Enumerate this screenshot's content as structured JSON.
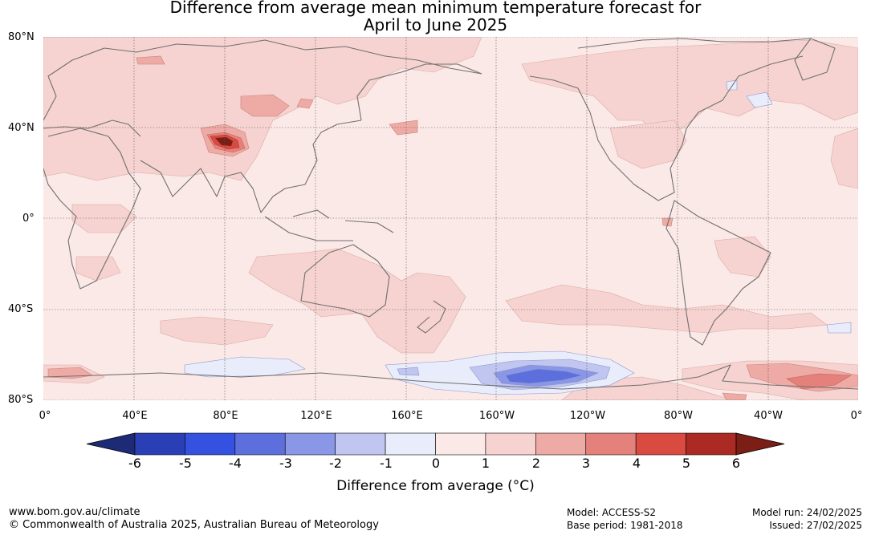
{
  "title_line1": "Difference from average mean minimum temperature forecast for",
  "title_line2": "April to June 2025",
  "map": {
    "lat_labels": [
      "80°N",
      "40°N",
      "0°",
      "40°S",
      "80°S"
    ],
    "lon_labels": [
      "0°",
      "40°E",
      "80°E",
      "120°E",
      "160°E",
      "160°W",
      "120°W",
      "80°W",
      "40°W",
      "0°"
    ],
    "colors": {
      "level_0_1": "#fbe9e7",
      "level_1_2": "#f6d3d0",
      "level_2_3": "#eeaaa5",
      "level_3_4": "#e5817b",
      "level_4_5": "#d94a40",
      "level_5_6": "#ab2a23",
      "level_gt6": "#7a1e16",
      "level_m1_0": "#e9ecfb",
      "level_m2_m1": "#c0c6f0",
      "level_m3_m2": "#8a96e6",
      "level_m4_m3": "#5c6fdc",
      "coast": "#707070"
    }
  },
  "colorbar": {
    "ticks": [
      "-6",
      "-5",
      "-4",
      "-3",
      "-2",
      "-1",
      "0",
      "1",
      "2",
      "3",
      "4",
      "5",
      "6"
    ],
    "colors": [
      "#1d2b77",
      "#2a3fb5",
      "#3451e0",
      "#5c6fdc",
      "#8a96e6",
      "#c0c6f0",
      "#e9ecfb",
      "#fbe9e7",
      "#f6d3d0",
      "#eeaaa5",
      "#e5817b",
      "#d94a40",
      "#ab2a23",
      "#7a1e16"
    ],
    "label": "Difference from average (°C)"
  },
  "footer": {
    "url": "www.bom.gov.au/climate",
    "copyright": "© Commonwealth of Australia 2025, Australian Bureau of Meteorology",
    "model": "Model: ACCESS-S2",
    "base_period": "Base period: 1981-2018",
    "model_run": "Model run: 24/02/2025",
    "issued": "Issued: 27/02/2025"
  }
}
